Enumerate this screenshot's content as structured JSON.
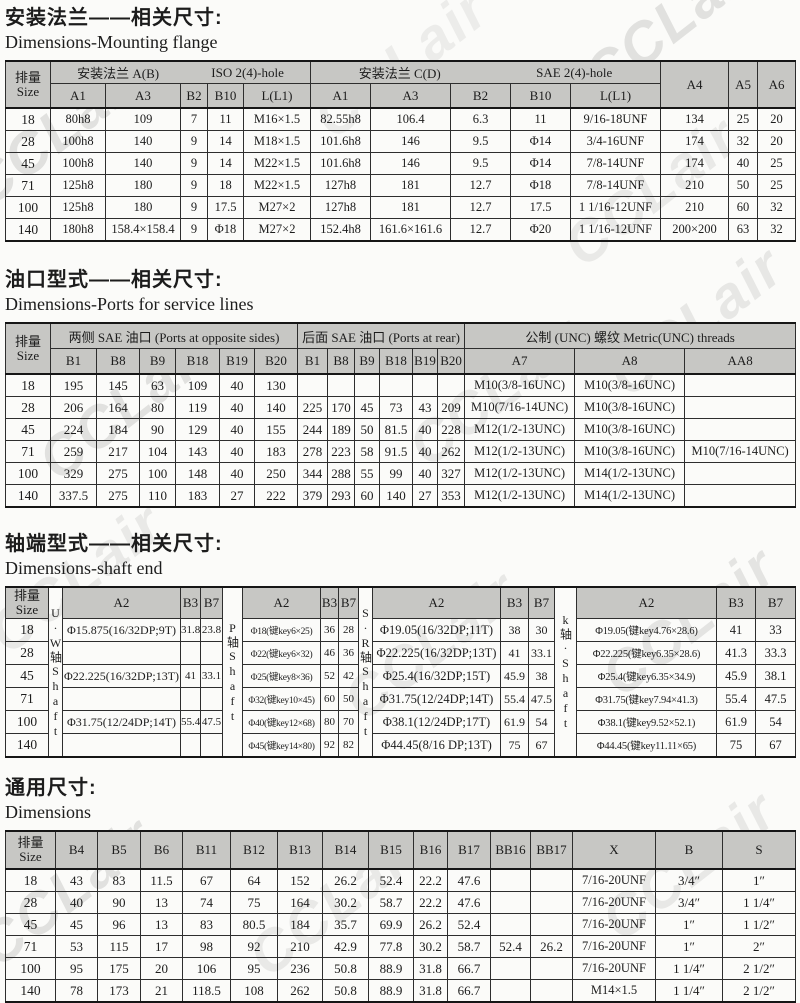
{
  "watermark": "CCLair",
  "s1": {
    "zh": "安装法兰——相关尺寸:",
    "en": "Dimensions-Mounting flange",
    "size_zh": "排量",
    "size_en": "Size",
    "g1a": "安装法兰 A(B)",
    "g1b": "ISO 2(4)-hole",
    "g2a": "安装法兰 C(D)",
    "g2b": "SAE 2(4)-hole",
    "sub": [
      "A1",
      "A3",
      "B2",
      "B10",
      "L(L1)",
      "A1",
      "A3",
      "B2",
      "B10",
      "L(L1)"
    ],
    "tail": [
      "A4",
      "A5",
      "A6"
    ],
    "rows": [
      [
        "18",
        "80h8",
        "109",
        "7",
        "11",
        "M16×1.5",
        "82.55h8",
        "106.4",
        "6.3",
        "11",
        "9/16-18UNF",
        "134",
        "25",
        "20"
      ],
      [
        "28",
        "100h8",
        "140",
        "9",
        "14",
        "M18×1.5",
        "101.6h8",
        "146",
        "9.5",
        "Φ14",
        "3/4-16UNF",
        "174",
        "32",
        "20"
      ],
      [
        "45",
        "100h8",
        "140",
        "9",
        "14",
        "M22×1.5",
        "101.6h8",
        "146",
        "9.5",
        "Φ14",
        "7/8-14UNF",
        "174",
        "40",
        "25"
      ],
      [
        "71",
        "125h8",
        "180",
        "9",
        "18",
        "M22×1.5",
        "127h8",
        "181",
        "12.7",
        "Φ18",
        "7/8-14UNF",
        "210",
        "50",
        "25"
      ],
      [
        "100",
        "125h8",
        "180",
        "9",
        "17.5",
        "M27×2",
        "127h8",
        "181",
        "12.7",
        "17.5",
        "1 1/16-12UNF",
        "210",
        "60",
        "32"
      ],
      [
        "140",
        "180h8",
        "158.4×158.4",
        "9",
        "Φ18",
        "M27×2",
        "152.4h8",
        "161.6×161.6",
        "12.7",
        "Φ20",
        "1 1/16-12UNF",
        "200×200",
        "63",
        "32"
      ]
    ]
  },
  "s2": {
    "zh": "油口型式——相关尺寸:",
    "en": "Dimensions-Ports for service  lines",
    "size_zh": "排量",
    "size_en": "Size",
    "g1": "两侧 SAE 油口 (Ports at opposite sides)",
    "g2": "后面 SAE 油口 (Ports at rear)",
    "g3": "公制 (UNC) 螺纹 Metric(UNC) threads",
    "sub": [
      "B1",
      "B8",
      "B9",
      "B18",
      "B19",
      "B20",
      "B1",
      "B8",
      "B9",
      "B18",
      "B19",
      "B20",
      "A7",
      "A8",
      "AA8"
    ],
    "rows": [
      [
        "18",
        "195",
        "145",
        "63",
        "109",
        "40",
        "130",
        "",
        "",
        "",
        "",
        "",
        "",
        "M10(3/8-16UNC)",
        "M10(3/8-16UNC)",
        ""
      ],
      [
        "28",
        "206",
        "164",
        "80",
        "119",
        "40",
        "140",
        "225",
        "170",
        "45",
        "73",
        "43",
        "209",
        "M10(7/16-14UNC)",
        "M10(3/8-16UNC)",
        ""
      ],
      [
        "45",
        "224",
        "184",
        "90",
        "129",
        "40",
        "155",
        "244",
        "189",
        "50",
        "81.5",
        "40",
        "228",
        "M12(1/2-13UNC)",
        "M10(3/8-16UNC)",
        ""
      ],
      [
        "71",
        "259",
        "217",
        "104",
        "143",
        "40",
        "183",
        "278",
        "223",
        "58",
        "91.5",
        "40",
        "262",
        "M12(1/2-13UNC)",
        "M10(3/8-16UNC)",
        "M10(7/16-14UNC)"
      ],
      [
        "100",
        "329",
        "275",
        "100",
        "148",
        "40",
        "250",
        "344",
        "288",
        "55",
        "99",
        "40",
        "327",
        "M12(1/2-13UNC)",
        "M14(1/2-13UNC)",
        ""
      ],
      [
        "140",
        "337.5",
        "275",
        "110",
        "183",
        "27",
        "222",
        "379",
        "293",
        "60",
        "140",
        "27",
        "353",
        "M12(1/2-13UNC)",
        "M14(1/2-13UNC)",
        ""
      ]
    ]
  },
  "s3": {
    "zh": "轴端型式——相关尺寸:",
    "en": "Dimensions-shaft  end",
    "size_zh": "排量",
    "size_en": "Size",
    "shafts": [
      "U·W轴Shaft",
      "P轴Shaft",
      "S·R轴Shaft",
      "k轴·Shaft"
    ],
    "cols": [
      "A2",
      "B3",
      "B7"
    ],
    "rows": [
      [
        "18",
        "Φ15.875(16/32DP;9T)",
        "31.8",
        "23.8",
        "Φ18(键key6×25)",
        "36",
        "28",
        "Φ19.05(16/32DP;11T)",
        "38",
        "30",
        "Φ19.05(键key4.76×28.6)",
        "41",
        "33"
      ],
      [
        "28",
        "",
        "",
        "",
        "Φ22(键key6×32)",
        "46",
        "36",
        "Φ22.225(16/32DP;13T)",
        "41",
        "33.1",
        "Φ22.225(键key6.35×28.6)",
        "41.3",
        "33.3"
      ],
      [
        "45",
        "Φ22.225(16/32DP;13T)",
        "41",
        "33.1",
        "Φ25(键key8×36)",
        "52",
        "42",
        "Φ25.4(16/32DP;15T)",
        "45.9",
        "38",
        "Φ25.4(键key6.35×34.9)",
        "45.9",
        "38.1"
      ],
      [
        "71",
        "",
        "",
        "",
        "Φ32(键key10×45)",
        "60",
        "50",
        "Φ31.75(12/24DP;14T)",
        "55.4",
        "47.5",
        "Φ31.75(键key7.94×41.3)",
        "55.4",
        "47.5"
      ],
      [
        "100",
        "Φ31.75(12/24DP;14T)",
        "55.4",
        "47.5",
        "Φ40(键key12×68)",
        "80",
        "70",
        "Φ38.1(12/24DP;17T)",
        "61.9",
        "54",
        "Φ38.1(键key9.52×52.1)",
        "61.9",
        "54"
      ],
      [
        "140",
        "",
        "",
        "",
        "Φ45(键key14×80)",
        "92",
        "82",
        "Φ44.45(8/16 DP;13T)",
        "75",
        "67",
        "Φ44.45(键key11.11×65)",
        "75",
        "67"
      ]
    ]
  },
  "s4": {
    "zh": "通用尺寸:",
    "en": "Dimensions",
    "size_zh": "排量",
    "size_en": "Size",
    "sub": [
      "B4",
      "B5",
      "B6",
      "B11",
      "B12",
      "B13",
      "B14",
      "B15",
      "B16",
      "B17",
      "BB16",
      "BB17",
      "X",
      "B",
      "S"
    ],
    "rows": [
      [
        "18",
        "43",
        "83",
        "11.5",
        "67",
        "64",
        "152",
        "26.2",
        "52.4",
        "22.2",
        "47.6",
        "",
        "",
        "7/16-20UNF",
        "3/4″",
        "1″"
      ],
      [
        "28",
        "40",
        "90",
        "13",
        "74",
        "75",
        "164",
        "30.2",
        "58.7",
        "22.2",
        "47.6",
        "",
        "",
        "7/16-20UNF",
        "3/4″",
        "1 1/4″"
      ],
      [
        "45",
        "45",
        "96",
        "13",
        "83",
        "80.5",
        "184",
        "35.7",
        "69.9",
        "26.2",
        "52.4",
        "",
        "",
        "7/16-20UNF",
        "1″",
        "1 1/2″"
      ],
      [
        "71",
        "53",
        "115",
        "17",
        "98",
        "92",
        "210",
        "42.9",
        "77.8",
        "30.2",
        "58.7",
        "52.4",
        "26.2",
        "7/16-20UNF",
        "1″",
        "2″"
      ],
      [
        "100",
        "95",
        "175",
        "20",
        "106",
        "95",
        "236",
        "50.8",
        "88.9",
        "31.8",
        "66.7",
        "",
        "",
        "7/16-20UNF",
        "1 1/4″",
        "2 1/2″"
      ],
      [
        "140",
        "78",
        "173",
        "21",
        "118.5",
        "108",
        "262",
        "50.8",
        "88.9",
        "31.8",
        "66.7",
        "",
        "",
        "M14×1.5",
        "1 1/4″",
        "2 1/2″"
      ]
    ]
  }
}
